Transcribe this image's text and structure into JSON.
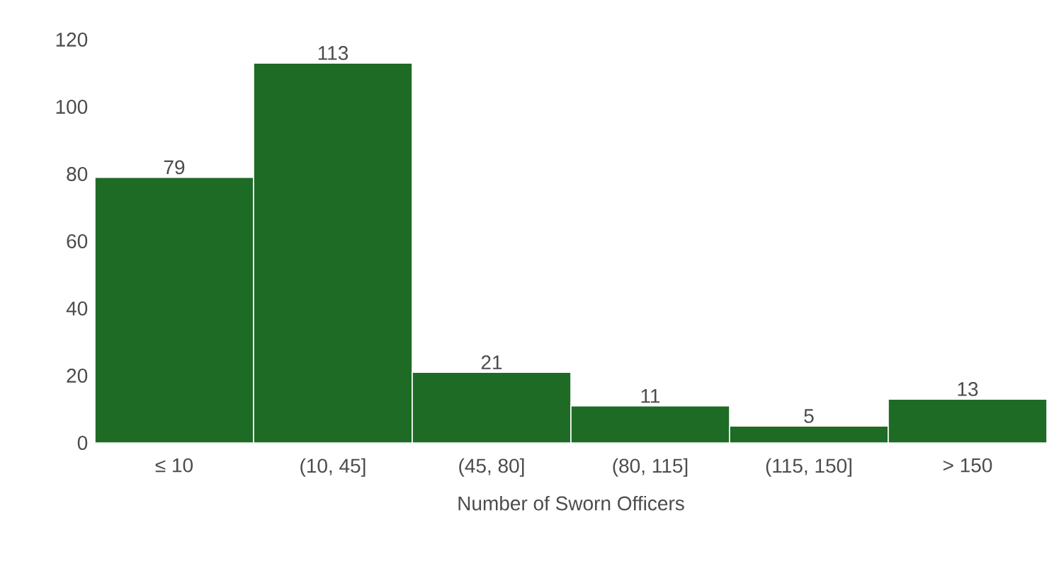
{
  "chart_data": {
    "type": "bar",
    "xlabel": "Number of Sworn Officers",
    "categories": [
      "≤ 10",
      "(10, 45]",
      "(45, 80]",
      "(80, 115]",
      "(115, 150]",
      "> 150"
    ],
    "values": [
      79,
      113,
      21,
      11,
      5,
      13
    ],
    "color": "#1e6b26",
    "ylim": [
      0,
      120
    ],
    "yticks": [
      0,
      20,
      40,
      60,
      80,
      100,
      120
    ],
    "data_labels": true
  }
}
